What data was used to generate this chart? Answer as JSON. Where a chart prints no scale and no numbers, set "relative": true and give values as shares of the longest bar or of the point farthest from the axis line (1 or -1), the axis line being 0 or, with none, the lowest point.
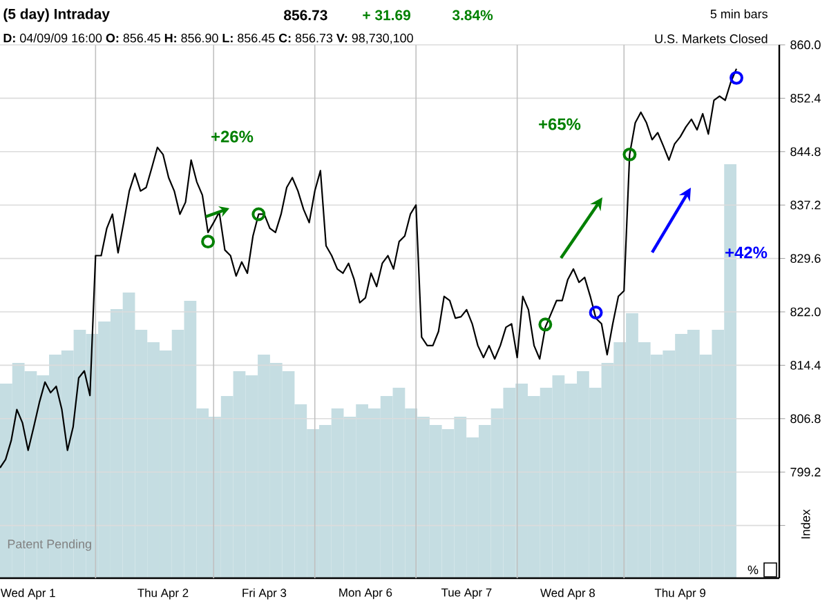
{
  "chart_data": [
    {
      "type": "line",
      "title": "(5 day) Intraday",
      "subtitle": "**D:** 04/09/09 16:00 **O:** 856.45 **H:** 856.90 **L:** 856.45 **C:** 856.73 **V:** 98,730,100",
      "ylabel": "Index",
      "annotations": [
        "856.73",
        "+ 31.69",
        "3.84%",
        "5 min bars",
        "U.S. Markets Closed",
        "+26%",
        "+65%",
        "+42%",
        "Patent Pending",
        "%"
      ],
      "categories": [
        null,
        null,
        null,
        null,
        null,
        "Wed Apr 1",
        null,
        null,
        null,
        null,
        null,
        null,
        null,
        null,
        null,
        null,
        null,
        null,
        null,
        null,
        null,
        null,
        null,
        null,
        null,
        null,
        null,
        null,
        null,
        "Thu Apr 2",
        null,
        null,
        null,
        null,
        null,
        null,
        null,
        null,
        null,
        null,
        null,
        null,
        null,
        null,
        null,
        null,
        null,
        "Fri Apr 3",
        null,
        null,
        null,
        null,
        null,
        null,
        null,
        null,
        null,
        null,
        null,
        null,
        null,
        null,
        null,
        null,
        null,
        "Mon Apr 6",
        null,
        null,
        null,
        null,
        null,
        null,
        null,
        null,
        null,
        null,
        null,
        null,
        null,
        null,
        null,
        null,
        null,
        "Tue Apr 7",
        null,
        null,
        null,
        null,
        null,
        null,
        null,
        null,
        null,
        null,
        null,
        null,
        null,
        null,
        null,
        null,
        null,
        "Wed Apr 8",
        null,
        null,
        null,
        null,
        null,
        null,
        null,
        null,
        null,
        null,
        null,
        null,
        null,
        null,
        null,
        null,
        null,
        null,
        null,
        "Thu Apr 9",
        null,
        null,
        null,
        null,
        null,
        null,
        null,
        null,
        null,
        null
      ],
      "ylim": [
        784.1,
        860.0
      ],
      "yticks": [
        {
          "value": 791.6,
          "label": null
        },
        {
          "value": 799.2,
          "label": "799.2"
        },
        {
          "value": 806.8,
          "label": "806.8"
        },
        {
          "value": 814.4,
          "label": "814.4"
        },
        {
          "value": 822.0,
          "label": "822.0"
        },
        {
          "value": 829.6,
          "label": "829.6"
        },
        {
          "value": 837.2,
          "label": "837.2"
        },
        {
          "value": 844.8,
          "label": "844.8"
        },
        {
          "value": 852.4,
          "label": "852.4"
        },
        {
          "value": 860.0,
          "label": "860.0"
        }
      ],
      "grid": true,
      "series": [
        {
          "type": "line",
          "color": "#000000",
          "values": [
            799.8,
            801.0,
            803.7,
            808.1,
            806.2,
            802.3,
            805.6,
            809.1,
            812.0,
            810.5,
            811.4,
            808.1,
            802.3,
            805.6,
            812.6,
            813.6,
            810.1,
            830.0,
            830.0,
            833.9,
            835.9,
            830.4,
            834.7,
            839.2,
            841.7,
            839.2,
            839.7,
            842.5,
            845.4,
            844.4,
            841.1,
            839.2,
            835.9,
            837.6,
            843.6,
            840.5,
            838.6,
            833.3,
            834.7,
            836.2,
            830.8,
            830.0,
            827.1,
            829.1,
            827.5,
            832.8,
            835.9,
            835.9,
            833.9,
            833.3,
            835.9,
            839.7,
            841.1,
            839.2,
            836.6,
            834.7,
            839.2,
            842.1,
            831.4,
            830.0,
            828.1,
            827.5,
            828.9,
            826.6,
            823.3,
            824.0,
            827.5,
            825.6,
            828.9,
            830.0,
            828.1,
            832.0,
            832.8,
            835.9,
            837.2,
            818.4,
            817.2,
            817.2,
            819.2,
            824.2,
            823.6,
            821.1,
            821.3,
            822.3,
            820.3,
            817.2,
            815.5,
            817.2,
            815.3,
            817.2,
            819.8,
            820.3,
            815.5,
            824.2,
            822.3,
            817.2,
            815.3,
            819.8,
            821.7,
            823.6,
            823.6,
            826.6,
            828.1,
            826.2,
            826.9,
            824.2,
            821.1,
            820.3,
            815.9,
            820.3,
            824.2,
            825.0,
            844.4,
            848.9,
            850.4,
            848.9,
            846.5,
            847.5,
            845.6,
            843.6,
            845.9,
            846.9,
            848.3,
            849.4,
            847.9,
            850.2,
            847.3,
            852.1,
            852.7,
            852.1,
            854.7,
            856.6
          ]
        },
        {
          "type": "scatter",
          "marker": "circle",
          "color": "#008000",
          "values": [
            null,
            null,
            null,
            null,
            null,
            null,
            null,
            null,
            null,
            null,
            null,
            null,
            null,
            null,
            null,
            null,
            null,
            null,
            null,
            null,
            null,
            null,
            null,
            null,
            null,
            null,
            null,
            null,
            null,
            null,
            null,
            null,
            null,
            null,
            null,
            null,
            null,
            832.0,
            null,
            null,
            null,
            null,
            null,
            null,
            null,
            null,
            835.9,
            null,
            null,
            null,
            null,
            null,
            null,
            null,
            null,
            null,
            null,
            null,
            null,
            null,
            null,
            null,
            null,
            null,
            null,
            null,
            null,
            null,
            null,
            null,
            null,
            null,
            null,
            null,
            null,
            null,
            null,
            null,
            null,
            null,
            null,
            null,
            null,
            null,
            null,
            null,
            null,
            null,
            null,
            null,
            null,
            null,
            null,
            null,
            null,
            null,
            null,
            820.2,
            null,
            null,
            null,
            null,
            null,
            null,
            null,
            null,
            null,
            null,
            null,
            null,
            null,
            null,
            844.4,
            null,
            null,
            null,
            null,
            null,
            null,
            null,
            null,
            null,
            null,
            null,
            null,
            null,
            null,
            null,
            null,
            null,
            null,
            null
          ]
        },
        {
          "type": "scatter",
          "marker": "circle",
          "color": "#0000ff",
          "values": [
            null,
            null,
            null,
            null,
            null,
            null,
            null,
            null,
            null,
            null,
            null,
            null,
            null,
            null,
            null,
            null,
            null,
            null,
            null,
            null,
            null,
            null,
            null,
            null,
            null,
            null,
            null,
            null,
            null,
            null,
            null,
            null,
            null,
            null,
            null,
            null,
            null,
            null,
            null,
            null,
            null,
            null,
            null,
            null,
            null,
            null,
            null,
            null,
            null,
            null,
            null,
            null,
            null,
            null,
            null,
            null,
            null,
            null,
            null,
            null,
            null,
            null,
            null,
            null,
            null,
            null,
            null,
            null,
            null,
            null,
            null,
            null,
            null,
            null,
            null,
            null,
            null,
            null,
            null,
            null,
            null,
            null,
            null,
            null,
            null,
            null,
            null,
            null,
            null,
            null,
            null,
            null,
            null,
            null,
            null,
            null,
            null,
            null,
            null,
            null,
            null,
            null,
            null,
            null,
            null,
            null,
            821.9,
            null,
            null,
            null,
            null,
            null,
            null,
            null,
            null,
            null,
            null,
            null,
            null,
            null,
            null,
            null,
            null,
            null,
            null,
            null,
            null,
            null,
            null,
            null,
            null,
            855.3
          ]
        }
      ]
    },
    {
      "type": "bar",
      "relative": true,
      "color": "#c5dde2",
      "categories": [
        null,
        null,
        null,
        null,
        null,
        null,
        null,
        null,
        null,
        null,
        null,
        null,
        null,
        null,
        null,
        null,
        null,
        null,
        null,
        null,
        null,
        null,
        null,
        null,
        null,
        null,
        null,
        null,
        null,
        null,
        null,
        null,
        null,
        null,
        null,
        null,
        null,
        null,
        null,
        null,
        null,
        null,
        null,
        null,
        null,
        null,
        null,
        null,
        null,
        null,
        null,
        null,
        null,
        null,
        null,
        null,
        null,
        null,
        null,
        null
      ],
      "values": [
        0.47,
        0.52,
        0.5,
        0.49,
        0.54,
        0.55,
        0.6,
        0.59,
        0.62,
        0.65,
        0.69,
        0.6,
        0.57,
        0.55,
        0.6,
        0.67,
        0.41,
        0.39,
        0.44,
        0.5,
        0.49,
        0.54,
        0.52,
        0.5,
        0.42,
        0.36,
        0.37,
        0.41,
        0.39,
        0.42,
        0.41,
        0.44,
        0.46,
        0.41,
        0.39,
        0.37,
        0.36,
        0.39,
        0.34,
        0.37,
        0.41,
        0.46,
        0.47,
        0.44,
        0.46,
        0.49,
        0.47,
        0.5,
        0.46,
        0.52,
        0.57,
        0.64,
        0.57,
        0.54,
        0.55,
        0.59,
        0.6,
        0.54,
        0.6,
        1
      ]
    }
  ]
}
